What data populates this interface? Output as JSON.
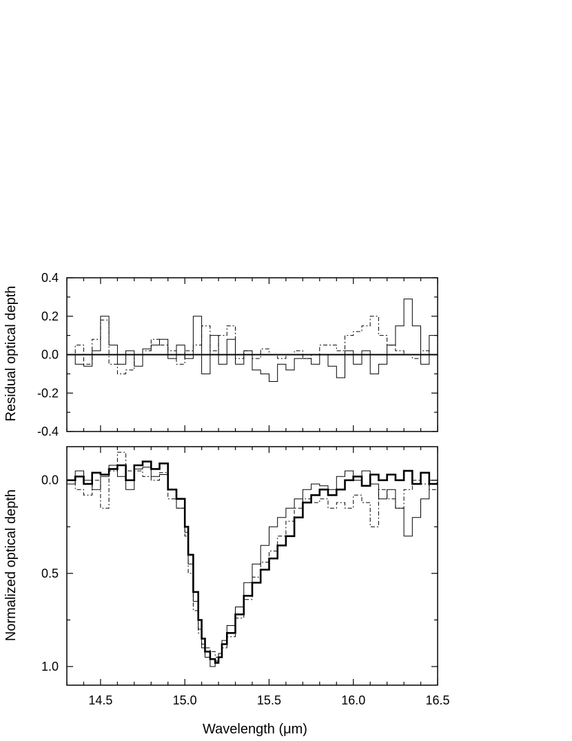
{
  "chart_data": [
    {
      "type": "line",
      "panel": "top",
      "ylabel": "Residual optical depth",
      "xlim": [
        14.3,
        16.5
      ],
      "ylim": [
        -0.4,
        0.4
      ],
      "y_reversed": false,
      "x_ticks": [
        14.5,
        15.0,
        15.5,
        16.0,
        16.5
      ],
      "y_ticks": [
        "0.4",
        "0.2",
        "0.0",
        "-0.2",
        "-0.4"
      ],
      "y_tick_values": [
        0.4,
        0.2,
        0.0,
        -0.2,
        -0.4
      ],
      "reference_line": 0.0,
      "series": [
        {
          "style": "thin-solid",
          "x": [
            14.3,
            14.35,
            14.4,
            14.45,
            14.5,
            14.55,
            14.6,
            14.65,
            14.7,
            14.75,
            14.8,
            14.85,
            14.9,
            14.95,
            15.0,
            15.05,
            15.1,
            15.15,
            15.2,
            15.25,
            15.3,
            15.35,
            15.4,
            15.45,
            15.5,
            15.55,
            15.6,
            15.65,
            15.7,
            15.75,
            15.8,
            15.85,
            15.9,
            15.95,
            16.0,
            16.05,
            16.1,
            16.15,
            16.2,
            16.25,
            16.3,
            16.35,
            16.4,
            16.45,
            16.5
          ],
          "values": [
            0.0,
            -0.05,
            -0.06,
            0.02,
            0.2,
            0.05,
            -0.05,
            0.02,
            -0.06,
            0.03,
            0.05,
            0.08,
            -0.02,
            0.05,
            -0.02,
            0.2,
            -0.1,
            0.1,
            -0.05,
            0.08,
            -0.05,
            0.02,
            -0.08,
            -0.1,
            -0.14,
            -0.05,
            -0.08,
            -0.02,
            -0.02,
            -0.05,
            0.0,
            -0.06,
            -0.12,
            0.02,
            -0.05,
            0.02,
            -0.1,
            -0.05,
            0.05,
            0.15,
            0.29,
            0.15,
            -0.05,
            0.1,
            0.1
          ]
        },
        {
          "style": "dash-dot",
          "x": [
            14.3,
            14.35,
            14.4,
            14.45,
            14.5,
            14.55,
            14.6,
            14.65,
            14.7,
            14.75,
            14.8,
            14.85,
            14.9,
            14.95,
            15.0,
            15.05,
            15.1,
            15.15,
            15.2,
            15.25,
            15.3,
            15.35,
            15.4,
            15.45,
            15.5,
            15.55,
            15.6,
            15.65,
            15.7,
            15.75,
            15.8,
            15.85,
            15.9,
            15.95,
            16.0,
            16.05,
            16.1,
            16.15,
            16.2,
            16.25,
            16.3,
            16.35,
            16.4,
            16.45,
            16.5
          ],
          "values": [
            0.0,
            0.05,
            -0.05,
            0.08,
            0.18,
            -0.05,
            -0.1,
            -0.08,
            0.0,
            0.02,
            0.08,
            0.05,
            0.02,
            -0.05,
            0.02,
            0.05,
            0.15,
            0.02,
            0.1,
            0.15,
            -0.02,
            0.02,
            -0.02,
            0.03,
            0.0,
            -0.02,
            0.0,
            0.02,
            -0.02,
            0.0,
            0.05,
            0.05,
            0.02,
            0.1,
            0.12,
            0.15,
            0.2,
            0.1,
            0.05,
            0.02,
            0.0,
            -0.02,
            0.02,
            0.0,
            0.0
          ]
        }
      ]
    },
    {
      "type": "line",
      "panel": "bottom",
      "xlabel": "Wavelength (μm)",
      "ylabel": "Normalized optical depth",
      "xlim": [
        14.3,
        16.5
      ],
      "ylim": [
        -0.18,
        1.1
      ],
      "y_reversed": true,
      "x_ticks": [
        "14.5",
        "15.0",
        "15.5",
        "16.0",
        "16.5"
      ],
      "x_tick_values": [
        14.5,
        15.0,
        15.5,
        16.0,
        16.5
      ],
      "y_ticks": [
        "0.0",
        "0.5",
        "1.0"
      ],
      "y_tick_values": [
        0.0,
        0.5,
        1.0
      ],
      "series": [
        {
          "style": "thick-solid",
          "x": [
            14.3,
            14.35,
            14.4,
            14.45,
            14.5,
            14.55,
            14.6,
            14.65,
            14.7,
            14.75,
            14.8,
            14.85,
            14.9,
            14.95,
            15.0,
            15.02,
            15.05,
            15.08,
            15.1,
            15.12,
            15.15,
            15.18,
            15.2,
            15.22,
            15.25,
            15.3,
            15.35,
            15.4,
            15.45,
            15.5,
            15.55,
            15.6,
            15.65,
            15.7,
            15.75,
            15.8,
            15.85,
            15.9,
            15.95,
            16.0,
            16.05,
            16.1,
            16.15,
            16.2,
            16.25,
            16.3,
            16.35,
            16.4,
            16.45,
            16.5
          ],
          "values": [
            0.0,
            -0.02,
            0.02,
            -0.04,
            -0.03,
            -0.06,
            -0.08,
            0.0,
            -0.08,
            -0.1,
            -0.06,
            -0.09,
            0.05,
            0.1,
            0.25,
            0.4,
            0.6,
            0.75,
            0.85,
            0.92,
            0.96,
            0.98,
            0.95,
            0.88,
            0.82,
            0.72,
            0.62,
            0.55,
            0.48,
            0.42,
            0.35,
            0.3,
            0.2,
            0.12,
            0.08,
            0.05,
            0.08,
            0.05,
            0.0,
            -0.02,
            0.03,
            -0.03,
            0.0,
            -0.03,
            0.0,
            -0.05,
            0.02,
            -0.04,
            0.02,
            0.01
          ]
        },
        {
          "style": "thin-solid",
          "x": [
            14.3,
            14.35,
            14.4,
            14.45,
            14.5,
            14.55,
            14.6,
            14.65,
            14.7,
            14.75,
            14.8,
            14.85,
            14.9,
            14.95,
            15.0,
            15.02,
            15.05,
            15.08,
            15.1,
            15.12,
            15.15,
            15.18,
            15.2,
            15.22,
            15.25,
            15.3,
            15.35,
            15.4,
            15.45,
            15.5,
            15.55,
            15.6,
            15.65,
            15.7,
            15.75,
            15.8,
            15.85,
            15.9,
            15.95,
            16.0,
            16.05,
            16.1,
            16.15,
            16.2,
            16.25,
            16.3,
            16.35,
            16.4,
            16.45,
            16.5
          ],
          "values": [
            0.02,
            -0.05,
            0.0,
            0.05,
            -0.02,
            -0.08,
            -0.02,
            0.05,
            -0.06,
            -0.07,
            -0.02,
            -0.03,
            0.05,
            0.15,
            0.28,
            0.45,
            0.65,
            0.8,
            0.9,
            0.95,
            1.0,
            0.97,
            0.93,
            0.86,
            0.78,
            0.68,
            0.55,
            0.45,
            0.35,
            0.25,
            0.2,
            0.15,
            0.1,
            0.05,
            0.02,
            0.03,
            0.05,
            -0.02,
            -0.05,
            0.0,
            -0.05,
            0.02,
            0.1,
            0.05,
            0.15,
            0.3,
            0.2,
            0.1,
            0.0,
            0.05
          ]
        },
        {
          "style": "dash-dot",
          "x": [
            14.3,
            14.35,
            14.4,
            14.45,
            14.5,
            14.55,
            14.6,
            14.65,
            14.7,
            14.75,
            14.8,
            14.85,
            14.9,
            14.95,
            15.0,
            15.02,
            15.05,
            15.08,
            15.1,
            15.12,
            15.15,
            15.18,
            15.2,
            15.22,
            15.25,
            15.3,
            15.35,
            15.4,
            15.45,
            15.5,
            15.55,
            15.6,
            15.65,
            15.7,
            15.75,
            15.8,
            15.85,
            15.9,
            15.95,
            16.0,
            16.05,
            16.1,
            16.15,
            16.2,
            16.25,
            16.3,
            16.35,
            16.4,
            16.45,
            16.5
          ],
          "values": [
            0.0,
            0.05,
            0.08,
            0.0,
            0.15,
            -0.05,
            -0.15,
            -0.05,
            -0.05,
            -0.02,
            0.0,
            -0.04,
            0.1,
            0.15,
            0.3,
            0.5,
            0.7,
            0.82,
            0.88,
            0.9,
            0.92,
            0.95,
            0.95,
            0.9,
            0.84,
            0.74,
            0.64,
            0.52,
            0.44,
            0.38,
            0.3,
            0.22,
            0.15,
            0.1,
            0.12,
            0.1,
            0.15,
            0.12,
            0.15,
            0.08,
            0.12,
            0.25,
            0.05,
            0.1,
            0.15,
            0.05,
            0.0,
            0.02,
            0.05,
            0.0
          ]
        }
      ]
    }
  ]
}
